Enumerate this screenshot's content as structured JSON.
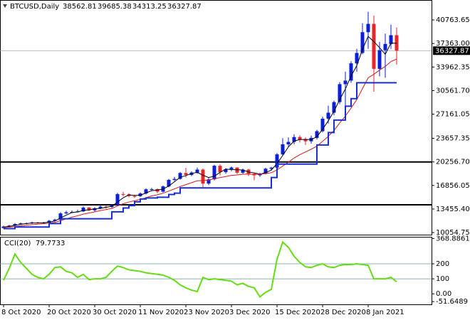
{
  "chart_data": [
    {
      "type": "candlestick",
      "title": "BTCUSD,Daily",
      "categories": [
        "8 Oct 2020",
        null,
        null,
        null,
        null,
        null,
        null,
        null,
        "20 Oct 2020",
        null,
        null,
        null,
        null,
        null,
        null,
        null,
        "30 Oct 2020",
        null,
        null,
        null,
        null,
        null,
        null,
        null,
        "11 Nov 2020",
        null,
        null,
        null,
        null,
        null,
        null,
        null,
        "23 Nov 2020",
        null,
        null,
        null,
        null,
        null,
        null,
        null,
        "3 Dec 2020",
        null,
        null,
        null,
        null,
        null,
        null,
        null,
        "15 Dec 2020",
        null,
        null,
        null,
        null,
        null,
        null,
        null,
        "28 Dec 2020",
        null,
        null,
        null,
        null,
        null,
        null,
        null,
        "8 Jan 2021",
        null,
        null,
        null,
        null,
        null
      ],
      "open": [
        10700,
        10930,
        11060,
        11290,
        11380,
        11390,
        11520,
        11420,
        11500,
        11760,
        11920,
        12820,
        12980,
        13030,
        13110,
        13650,
        13270,
        13560,
        13800,
        13760,
        14030,
        15600,
        15580,
        15330,
        15310,
        15700,
        16300,
        16330,
        15960,
        16720,
        17660,
        17800,
        18660,
        18380,
        18720,
        19150,
        17130,
        17740,
        19700,
        18780,
        19210,
        19450,
        18700,
        19150,
        18560,
        18320,
        18550,
        19270,
        19430,
        21350,
        22800,
        23150,
        23850,
        23480,
        23240,
        23730,
        24700,
        26500,
        27370,
        28900,
        31490,
        32000,
        34500,
        36000,
        39000,
        40200,
        33700,
        36400,
        37300,
        38562.81
      ],
      "high": [
        11050,
        11180,
        11420,
        11500,
        11510,
        11640,
        11600,
        11600,
        11900,
        12050,
        13000,
        13220,
        13250,
        13350,
        13850,
        13800,
        13700,
        14050,
        13950,
        14150,
        15800,
        15950,
        15750,
        15500,
        15850,
        16450,
        16500,
        16400,
        16850,
        17800,
        18100,
        18800,
        19400,
        18900,
        19450,
        19300,
        17950,
        19850,
        19900,
        19350,
        19600,
        19500,
        19300,
        19250,
        18700,
        18700,
        19400,
        19550,
        21550,
        23700,
        23800,
        24250,
        24100,
        23800,
        24050,
        24900,
        26800,
        28400,
        29100,
        31800,
        33300,
        34800,
        36600,
        40300,
        41950,
        41400,
        37600,
        38800,
        40100,
        39685.38
      ],
      "low": [
        10620,
        10850,
        10990,
        11200,
        11250,
        11300,
        11330,
        11350,
        11420,
        11650,
        11880,
        12700,
        12900,
        12950,
        13050,
        13150,
        13100,
        13450,
        13500,
        13600,
        13950,
        15300,
        15150,
        15050,
        15200,
        15550,
        16050,
        15750,
        15850,
        16600,
        17500,
        17700,
        18000,
        18200,
        18550,
        16500,
        16900,
        17600,
        18300,
        18550,
        18900,
        18500,
        18550,
        18200,
        17600,
        18100,
        18450,
        19000,
        19300,
        21200,
        22400,
        22800,
        23050,
        22700,
        22900,
        23500,
        24500,
        25800,
        27000,
        28600,
        28300,
        31700,
        33300,
        35800,
        36600,
        30400,
        32600,
        32400,
        36600,
        34313.25
      ],
      "close": [
        10930,
        11060,
        11290,
        11380,
        11390,
        11520,
        11420,
        11500,
        11760,
        11920,
        12820,
        12980,
        13030,
        13110,
        13650,
        13270,
        13560,
        13800,
        13760,
        14030,
        15600,
        15580,
        15330,
        15310,
        15700,
        16300,
        16330,
        15960,
        16720,
        17660,
        17800,
        18660,
        18380,
        18720,
        19150,
        17130,
        17740,
        19700,
        18780,
        19210,
        19450,
        18700,
        19150,
        18560,
        18320,
        18550,
        19270,
        19430,
        21350,
        22800,
        23150,
        23850,
        23480,
        23240,
        23730,
        24700,
        26500,
        27370,
        28900,
        31490,
        32000,
        34500,
        36000,
        39000,
        40200,
        33700,
        36400,
        37300,
        38562.81,
        36327.87
      ],
      "up_color": "#0a1fd6",
      "down_color": "#e5262b",
      "lines": [
        {
          "color": "#000000",
          "values": [
            10850,
            10950,
            11100,
            11240,
            11350,
            11430,
            11440,
            11470,
            11560,
            11720,
            12170,
            12570,
            12940,
            13040,
            13260,
            13340,
            13490,
            13540,
            13710,
            13860,
            14460,
            15070,
            15500,
            15410,
            15450,
            15770,
            16110,
            16200,
            16340,
            16780,
            17390,
            18040,
            18280,
            18590,
            18750,
            18330,
            18010,
            18190,
            18740,
            19230,
            19150,
            19120,
            19100,
            18800,
            18680,
            18480,
            18710,
            19080,
            20020,
            21190,
            22430,
            23270,
            23490,
            23520,
            23480,
            23890,
            24980,
            26190,
            27590,
            29250,
            30800,
            32660,
            34170,
            36500,
            38400,
            37630,
            36770,
            35800,
            37420,
            37400
          ]
        },
        {
          "color": "#d11a1a",
          "values": [
            10780,
            10830,
            10920,
            11020,
            11110,
            11200,
            11270,
            11330,
            11420,
            11520,
            11780,
            12030,
            12280,
            12480,
            12720,
            12880,
            13050,
            13230,
            13380,
            13540,
            13900,
            14220,
            14470,
            14650,
            14850,
            15100,
            15350,
            15520,
            15740,
            16050,
            16360,
            16700,
            16980,
            17260,
            17530,
            17570,
            17620,
            17850,
            17990,
            18150,
            18310,
            18380,
            18480,
            18490,
            18470,
            18480,
            18590,
            18700,
            19100,
            19650,
            20220,
            20830,
            21300,
            21700,
            22090,
            22540,
            23230,
            23950,
            24800,
            25880,
            26880,
            28040,
            29260,
            30850,
            32400,
            32920,
            33520,
            34060,
            34760,
            35110
          ]
        },
        {
          "color": "#1a2fd0",
          "step": true,
          "values": [
            10620,
            10620,
            10850,
            10850,
            10850,
            10850,
            10850,
            10850,
            11350,
            11350,
            12050,
            12050,
            12050,
            12050,
            12050,
            12050,
            12050,
            12050,
            12050,
            13050,
            13050,
            13600,
            13950,
            14500,
            14900,
            15050,
            15050,
            15150,
            15150,
            15550,
            15750,
            16500,
            16500,
            16500,
            16500,
            16500,
            16500,
            16500,
            16500,
            16500,
            16500,
            16500,
            16500,
            16500,
            16500,
            16500,
            16500,
            18000,
            19950,
            19950,
            19950,
            19950,
            19950,
            19950,
            19950,
            22700,
            22700,
            24500,
            26300,
            26300,
            28300,
            29400,
            31700,
            31700,
            31700,
            31700,
            31700,
            31700,
            31700,
            31700
          ]
        }
      ],
      "hlines": [
        20256.7,
        14070
      ],
      "ylim": [
        9750,
        43340
      ],
      "yticks": [
        40763.65,
        {
          "value": 37363,
          "label": "37363.00"
        },
        33962.35,
        {
          "value": 30561.7,
          "label": "30561.70"
        },
        27161.05,
        23657.35,
        {
          "value": 20256.7,
          "label": "20256.70"
        },
        16856.05,
        {
          "value": 13455.4,
          "label": "13455.40"
        },
        10054.75
      ]
    },
    {
      "type": "line",
      "title": "CCI(20)",
      "color": "#66dd11",
      "level_color": "#5f9ea0",
      "values": [
        90,
        170,
        265,
        210,
        170,
        130,
        110,
        100,
        130,
        175,
        180,
        150,
        140,
        110,
        130,
        95,
        100,
        100,
        110,
        150,
        185,
        175,
        160,
        155,
        150,
        140,
        135,
        130,
        125,
        110,
        90,
        60,
        40,
        25,
        15,
        110,
        95,
        100,
        95,
        90,
        85,
        60,
        70,
        50,
        40,
        -20,
        10,
        30,
        230,
        345,
        310,
        250,
        210,
        180,
        175,
        190,
        200,
        180,
        175,
        190,
        195,
        195,
        200,
        195,
        190,
        100,
        100,
        100,
        110,
        79.7733
      ],
      "ylim": [
        -70,
        380
      ],
      "yticks": [
        368.8861,
        200,
        100,
        {
          "value": 0,
          "label": "0.00"
        },
        -51.6489
      ],
      "levels": [
        200,
        100
      ]
    }
  ]
}
